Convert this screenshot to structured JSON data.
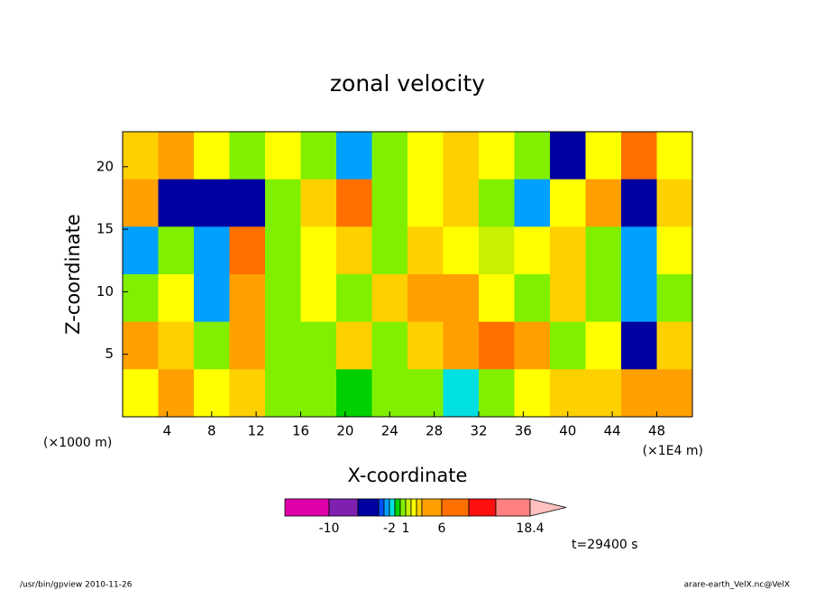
{
  "chart_data": {
    "type": "contour",
    "title": "zonal velocity",
    "xlabel": "X-coordinate",
    "ylabel": "Z-coordinate",
    "x_unit": "(×1E4 m)",
    "y_unit": "(×1000 m)",
    "xlim": [
      0,
      51.2
    ],
    "ylim": [
      0,
      22.8
    ],
    "xticks": [
      4,
      8,
      12,
      16,
      20,
      24,
      28,
      32,
      36,
      40,
      44,
      48
    ],
    "yticks": [
      5,
      10,
      15,
      20
    ],
    "z": [
      [
        3,
        5,
        2,
        0,
        2,
        0,
        -3,
        0,
        2,
        3,
        2,
        0,
        -5,
        2,
        6,
        2
      ],
      [
        5,
        -5,
        -6,
        -5,
        0,
        3,
        8,
        0,
        2,
        3,
        0,
        -3,
        2,
        5,
        -5,
        3
      ],
      [
        -3,
        0,
        -3,
        6,
        0,
        2,
        3,
        0,
        3,
        2,
        1,
        2,
        3,
        0,
        -3,
        2
      ],
      [
        0,
        2,
        -3,
        4,
        0,
        2,
        0,
        3,
        4,
        5,
        2,
        0,
        3,
        0,
        -3,
        0
      ],
      [
        5,
        3,
        0,
        4,
        0,
        0,
        3,
        0,
        3,
        4,
        6,
        5,
        0,
        2,
        -6,
        3
      ],
      [
        2,
        4,
        2,
        3,
        0,
        0,
        -1,
        0,
        0,
        -2,
        0,
        2,
        3,
        3,
        4,
        4
      ]
    ],
    "colorbar": {
      "levels": [
        -10,
        -6,
        -4,
        -3,
        -2,
        -1,
        0,
        1,
        2,
        3,
        4,
        6,
        10,
        14,
        18.4
      ],
      "colors": [
        "#e000a8",
        "#8020b0",
        "#0000a0",
        "#0050ff",
        "#00a0ff",
        "#00e0e0",
        "#00d000",
        "#80f000",
        "#c8f000",
        "#ffff00",
        "#ffd000",
        "#ffa000",
        "#ff7000",
        "#ff1010",
        "#ff8080",
        "#ffc0c0"
      ],
      "ticks": [
        -10,
        -2,
        1,
        6,
        18.4
      ]
    },
    "time_label": "t=29400 s",
    "footer_left": "/usr/bin/gpview  2010-11-26",
    "footer_right": "arare-earth_VelX.nc@VelX"
  }
}
